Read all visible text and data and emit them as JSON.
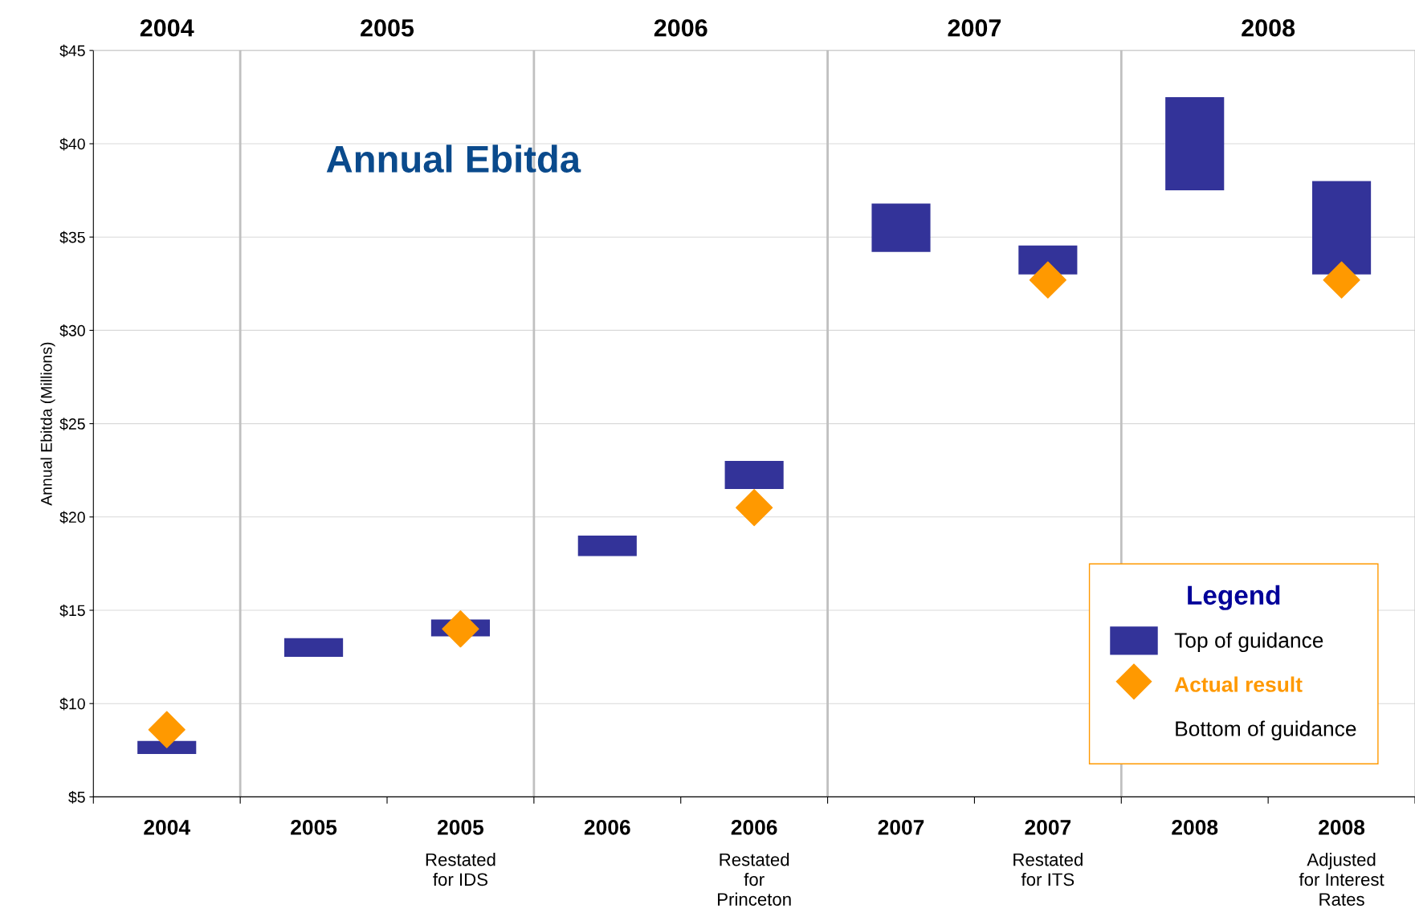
{
  "chart_data": {
    "type": "bar",
    "title": "Annual Ebitda",
    "ylabel": "Annual Ebitda (Millions)",
    "categories": [
      "2004",
      "2005",
      "2005\nRestated\nfor IDS",
      "2006",
      "2006\nRestated\nfor\nPrinceton",
      "2007",
      "2007\nRestated\nfor ITS",
      "2008",
      "2008\nAdjusted\nfor Interest\nRates"
    ],
    "series": [
      {
        "name": "Top of guidance",
        "color": "#333399",
        "base": [
          7.3,
          12.5,
          13.6,
          17.9,
          21.5,
          34.2,
          33.0,
          37.5,
          33.0
        ],
        "values": [
          0.7,
          1.0,
          0.9,
          1.1,
          1.5,
          2.6,
          1.55,
          5.0,
          5.0
        ]
      },
      {
        "name": "Actual result",
        "type": "scatter",
        "marker": "diamond",
        "color": "#ff9900",
        "values": [
          8.6,
          null,
          14.0,
          null,
          20.5,
          null,
          32.7,
          null,
          32.7
        ]
      }
    ],
    "ylim": [
      5,
      45
    ],
    "yticks": [
      {
        "value": 5,
        "label": "$5"
      },
      {
        "value": 10,
        "label": "$10"
      },
      {
        "value": 15,
        "label": "$15"
      },
      {
        "value": 20,
        "label": "$20"
      },
      {
        "value": 25,
        "label": "$25"
      },
      {
        "value": 30,
        "label": "$30"
      },
      {
        "value": 35,
        "label": "$35"
      },
      {
        "value": 40,
        "label": "$40"
      },
      {
        "value": 45,
        "label": "$45"
      }
    ],
    "grid": "y",
    "legend": "bottom right",
    "legend_title": "Legend",
    "annotations": [
      "2004",
      "2005",
      "2006",
      "2007",
      "2008",
      "Bottom of guidance"
    ]
  }
}
